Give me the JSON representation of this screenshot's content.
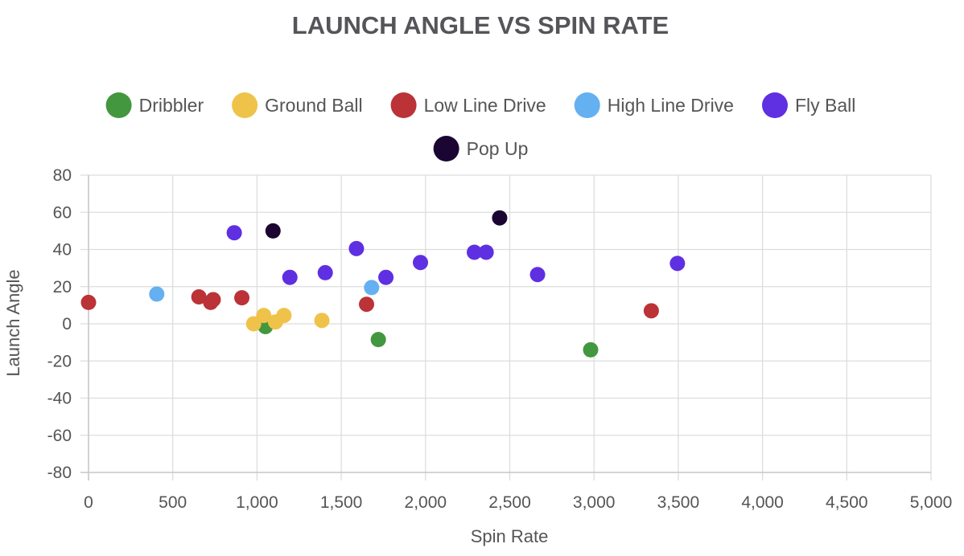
{
  "chart_data": {
    "type": "scatter",
    "title": "LAUNCH ANGLE VS SPIN RATE",
    "xlabel": "Spin Rate",
    "ylabel": "Launch Angle",
    "xlim": [
      0,
      5000
    ],
    "ylim": [
      -80,
      80
    ],
    "x_ticks": [
      "0",
      "500",
      "1,000",
      "1,500",
      "2,000",
      "2,500",
      "3,000",
      "3,500",
      "4,000",
      "4,500",
      "5,000"
    ],
    "y_ticks": [
      "80",
      "60",
      "40",
      "20",
      "0",
      "-20",
      "-40",
      "-60",
      "-80"
    ],
    "grid": true,
    "legend_position": "top",
    "series": [
      {
        "name": "Dribbler",
        "color": "#43973f",
        "points": [
          [
            1050,
            -1.5
          ],
          [
            1720,
            -8.5
          ],
          [
            2980,
            -14
          ]
        ]
      },
      {
        "name": "Ground Ball",
        "color": "#efc34a",
        "points": [
          [
            980,
            0
          ],
          [
            1040,
            4.5
          ],
          [
            1110,
            1
          ],
          [
            1160,
            4.5
          ],
          [
            1385,
            1.8
          ]
        ]
      },
      {
        "name": "Low Line Drive",
        "color": "#bb3237",
        "points": [
          [
            0,
            11.5
          ],
          [
            655,
            14.5
          ],
          [
            725,
            11.5
          ],
          [
            740,
            13
          ],
          [
            910,
            14
          ],
          [
            1650,
            10.5
          ],
          [
            3340,
            7
          ]
        ]
      },
      {
        "name": "High Line Drive",
        "color": "#64b0f1",
        "points": [
          [
            405,
            16
          ],
          [
            1680,
            19.5
          ]
        ]
      },
      {
        "name": "Fly Ball",
        "color": "#5f2fe2",
        "points": [
          [
            865,
            49
          ],
          [
            1195,
            25
          ],
          [
            1405,
            27.5
          ],
          [
            1590,
            40.5
          ],
          [
            1765,
            25
          ],
          [
            1970,
            33
          ],
          [
            2290,
            38.5
          ],
          [
            2360,
            38.5
          ],
          [
            2665,
            26.5
          ],
          [
            3495,
            32.5
          ]
        ]
      },
      {
        "name": "Pop Up",
        "color": "#1a0533",
        "points": [
          [
            1095,
            50
          ],
          [
            2440,
            57
          ]
        ]
      }
    ]
  }
}
